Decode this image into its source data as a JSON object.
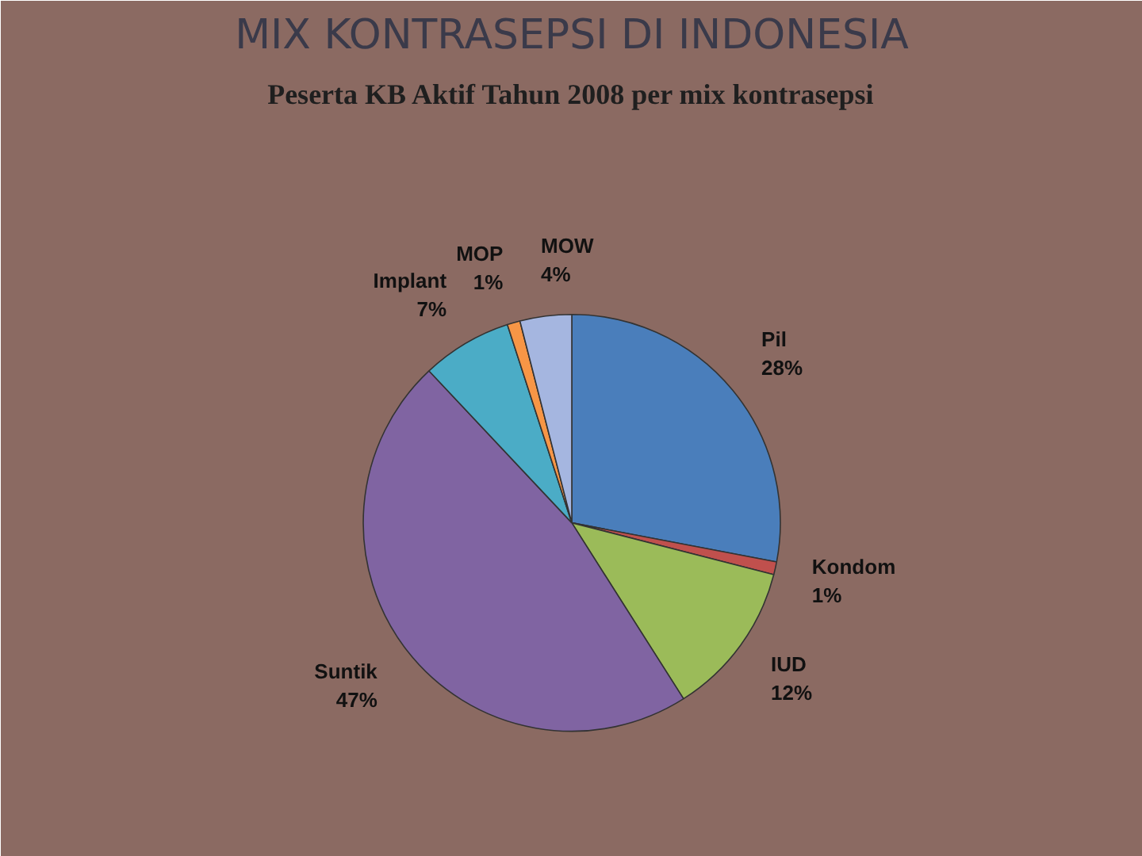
{
  "chart_data": {
    "type": "pie",
    "title": "MIX KONTRASEPSI DI INDONESIA",
    "subtitle": "Peserta KB Aktif Tahun 2008 per mix kontrasepsi",
    "categories": [
      "Pil",
      "Kondom",
      "IUD",
      "Suntik",
      "Implant",
      "MOP",
      "MOW"
    ],
    "values": [
      28,
      1,
      12,
      47,
      7,
      1,
      4
    ],
    "colors": [
      "#4a7ebb",
      "#c0504d",
      "#9bbb59",
      "#8064a2",
      "#4bacc6",
      "#f79646",
      "#a5b6e0"
    ],
    "value_labels": [
      "28%",
      "1%",
      "12%",
      "47%",
      "7%",
      "1%",
      "4%"
    ]
  }
}
